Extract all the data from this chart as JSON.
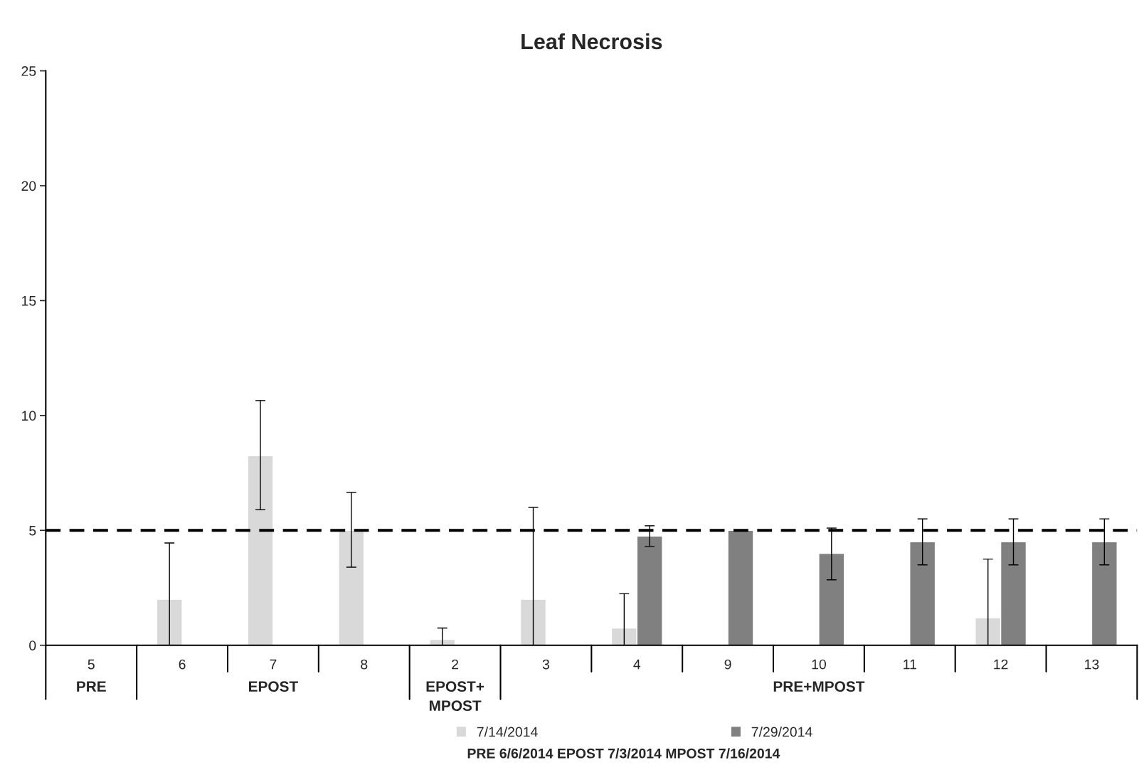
{
  "chart_data": {
    "type": "bar",
    "title": "Leaf Necrosis",
    "categories": [
      "5",
      "6",
      "7",
      "8",
      "2",
      "3",
      "4",
      "9",
      "10",
      "11",
      "12",
      "13"
    ],
    "series": [
      {
        "name": "7/14/2014",
        "color": "#d9d9d9",
        "values": [
          null,
          2,
          8.25,
          5,
          0.25,
          2,
          0.75,
          null,
          null,
          null,
          1.2,
          null
        ],
        "errors": [
          null,
          [
            0,
            4.45
          ],
          [
            5.9,
            10.65
          ],
          [
            3.4,
            6.65
          ],
          [
            0,
            0.75
          ],
          [
            0,
            6.0
          ],
          [
            0,
            2.25
          ],
          null,
          null,
          null,
          [
            0,
            3.75
          ],
          null
        ]
      },
      {
        "name": "7/29/2014",
        "color": "#808080",
        "values": [
          null,
          null,
          null,
          null,
          null,
          null,
          4.75,
          5,
          4,
          4.5,
          4.5,
          4.5
        ],
        "errors": [
          null,
          null,
          null,
          null,
          null,
          null,
          [
            4.3,
            5.2
          ],
          null,
          [
            2.85,
            5.1
          ],
          [
            3.5,
            5.5
          ],
          [
            3.5,
            5.5
          ],
          [
            3.5,
            5.5
          ]
        ]
      }
    ],
    "ylim": [
      0,
      25
    ],
    "yticks": [
      0,
      5,
      10,
      15,
      20,
      25
    ],
    "grid": false,
    "legend": "bottom",
    "ref_lines": [
      {
        "axis": "y",
        "value": 5,
        "color": "#000000",
        "line_style": "dashed"
      }
    ],
    "annotations": [
      "PRE",
      "EPOST",
      "EPOST+\nMPOST",
      "PRE+MPOST",
      "PRE 6/6/2014 EPOST 7/3/2014 MPOST 7/16/2014"
    ]
  }
}
